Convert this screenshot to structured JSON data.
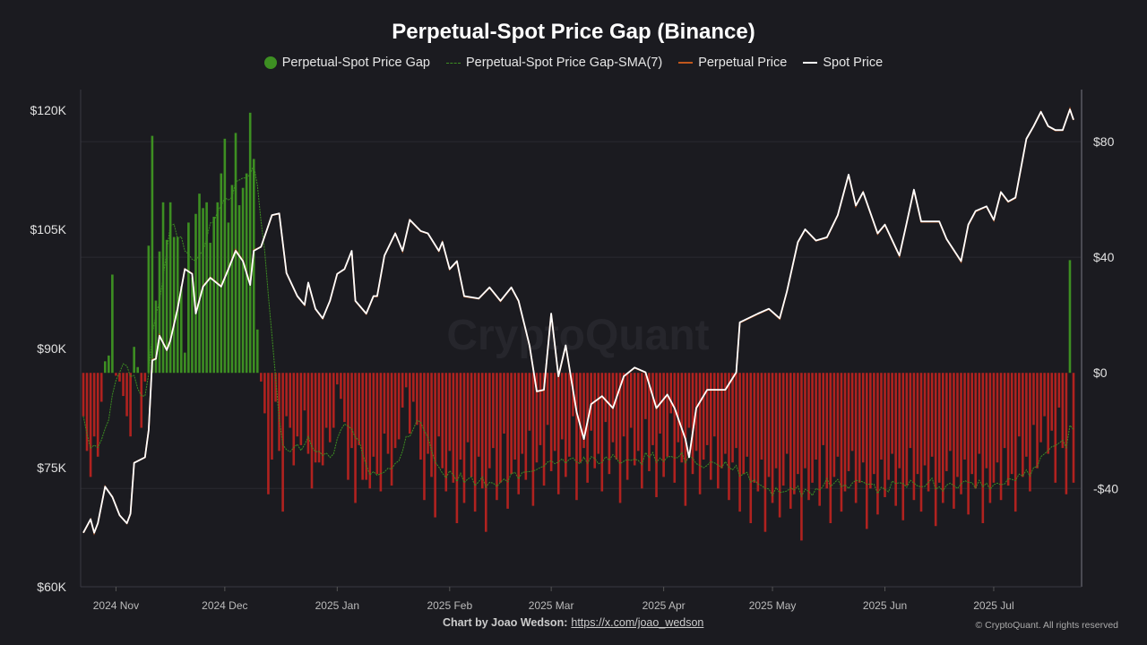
{
  "chart_data": {
    "type": "bar+line",
    "title": "Perpetual-Spot Price Gap (Binance)",
    "legend": [
      {
        "name": "Perpetual-Spot Price Gap",
        "marker": "dot",
        "color": "#3d8f22"
      },
      {
        "name": "Perpetual-Spot Price Gap-SMA(7)",
        "marker": "dashed-line",
        "color": "#3d8f22"
      },
      {
        "name": "Perpetual Price",
        "marker": "line",
        "color": "#c0571c"
      },
      {
        "name": "Spot Price",
        "marker": "line",
        "color": "#ffffff"
      }
    ],
    "legend_position": "top",
    "colors": {
      "positive_bar": "#3d8f22",
      "negative_bar": "#b0221f",
      "sma": "#3d8f22",
      "perpetual": "#c0571c",
      "spot": "#ffffff",
      "background": "#1b1b20"
    },
    "x_range": [
      "2024-10-23",
      "2025-07-23"
    ],
    "x_ticks": [
      {
        "label": "2024 Nov",
        "date": "2024-11-01"
      },
      {
        "label": "2024 Dec",
        "date": "2024-12-01"
      },
      {
        "label": "2025 Jan",
        "date": "2025-01-01"
      },
      {
        "label": "2025 Feb",
        "date": "2025-02-01"
      },
      {
        "label": "2025 Mar",
        "date": "2025-03-01"
      },
      {
        "label": "2025 Apr",
        "date": "2025-04-01"
      },
      {
        "label": "2025 May",
        "date": "2025-05-01"
      },
      {
        "label": "2025 Jun",
        "date": "2025-06-01"
      },
      {
        "label": "2025 Jul",
        "date": "2025-07-01"
      }
    ],
    "left_axis": {
      "unit": "USD",
      "ylim": [
        60000,
        122600
      ],
      "ticks": [
        {
          "value": 120000,
          "label": "$120K"
        },
        {
          "value": 105000,
          "label": "$105K"
        },
        {
          "value": 90000,
          "label": "$90K"
        },
        {
          "value": 75000,
          "label": "$75K"
        },
        {
          "value": 60000,
          "label": "$60K"
        }
      ]
    },
    "right_axis": {
      "unit": "USD",
      "ylim": [
        -74,
        98
      ],
      "ticks": [
        {
          "value": 80,
          "label": "$80"
        },
        {
          "value": 40,
          "label": "$40"
        },
        {
          "value": 0,
          "label": "$0"
        },
        {
          "value": -40,
          "label": "-$40"
        }
      ]
    },
    "grid": true,
    "gap_daily": {
      "start": "2024-10-23",
      "values": [
        -15,
        -27,
        -36,
        -22,
        -29,
        -10,
        4,
        6,
        34,
        -1,
        -3,
        -8,
        -15,
        -22,
        9,
        2,
        -19,
        -3,
        44,
        82,
        25,
        42,
        59,
        46,
        59,
        47,
        47,
        30,
        7,
        52,
        33,
        55,
        62,
        57,
        59,
        45,
        54,
        59,
        69,
        81,
        52,
        65,
        83,
        58,
        64,
        69,
        90,
        74,
        15,
        -3,
        -14,
        -42,
        -30,
        -10,
        -27,
        -48,
        -15,
        -19,
        -32,
        -22,
        -25,
        -13,
        -28,
        -40,
        -31,
        -31,
        -32,
        -19,
        -24,
        -19,
        -4,
        -9,
        -17,
        -37,
        -26,
        -45,
        -25,
        -37,
        -37,
        -40,
        -29,
        -35,
        -41,
        -21,
        -28,
        -39,
        -26,
        -23,
        -12,
        -5,
        -21,
        -10,
        -18,
        -30,
        -44,
        -28,
        -36,
        -50,
        -22,
        -33,
        -41,
        -27,
        -38,
        -52,
        -30,
        -45,
        -24,
        -36,
        -48,
        -29,
        -40,
        -55,
        -33,
        -26,
        -44,
        -38,
        -21,
        -47,
        -35,
        -30,
        -42,
        -28,
        -37,
        -20,
        -46,
        -31,
        -25,
        -39,
        -18,
        -34,
        -27,
        -42,
        -23,
        -36,
        -29,
        -15,
        -44,
        -31,
        -26,
        -38,
        -20,
        -33,
        -28,
        -41,
        -17,
        -35,
        -24,
        -30,
        -45,
        -22,
        -37,
        -19,
        -32,
        -27,
        -40,
        -16,
        -34,
        -25,
        -43,
        -21,
        -36,
        -29,
        -14,
        -38,
        -24,
        -31,
        -46,
        -19,
        -35,
        -27,
        -42,
        -30,
        -25,
        -37,
        -22,
        -40,
        -33,
        -28,
        -44,
        -31,
        -26,
        -48,
        -35,
        -29,
        -52,
        -38,
        -41,
        -30,
        -55,
        -36,
        -45,
        -33,
        -50,
        -39,
        -28,
        -47,
        -42,
        -35,
        -58,
        -33,
        -44,
        -38,
        -30,
        -46,
        -25,
        -40,
        -52,
        -36,
        -29,
        -48,
        -41,
        -34,
        -27,
        -45,
        -38,
        -31,
        -54,
        -40,
        -35,
        -49,
        -30,
        -43,
        -37,
        -28,
        -46,
        -33,
        -51,
        -39,
        -26,
        -44,
        -35,
        -48,
        -32,
        -41,
        -29,
        -53,
        -38,
        -45,
        -34,
        -27,
        -47,
        -36,
        -42,
        -30,
        -49,
        -35,
        -40,
        -28,
        -52,
        -33,
        -45,
        -38,
        -31,
        -44,
        -26,
        -39,
        -35,
        -48,
        -22,
        -36,
        -29,
        -41,
        -18,
        -33,
        -24,
        -15,
        -28,
        -20,
        -38,
        -12,
        -26,
        -42,
        39,
        -38
      ]
    },
    "spot_price": [
      [
        "2024-10-23",
        66800
      ],
      [
        "2024-10-25",
        68500
      ],
      [
        "2024-10-26",
        66800
      ],
      [
        "2024-10-27",
        68000
      ],
      [
        "2024-10-29",
        72600
      ],
      [
        "2024-10-31",
        71300
      ],
      [
        "2024-11-02",
        69000
      ],
      [
        "2024-11-04",
        68000
      ],
      [
        "2024-11-05",
        69200
      ],
      [
        "2024-11-06",
        75600
      ],
      [
        "2024-11-09",
        76300
      ],
      [
        "2024-11-10",
        79700
      ],
      [
        "2024-11-11",
        88500
      ],
      [
        "2024-11-12",
        88700
      ],
      [
        "2024-11-13",
        91600
      ],
      [
        "2024-11-15",
        89800
      ],
      [
        "2024-11-16",
        91000
      ],
      [
        "2024-11-18",
        95000
      ],
      [
        "2024-11-20",
        100000
      ],
      [
        "2024-11-22",
        99400
      ],
      [
        "2024-11-23",
        94400
      ],
      [
        "2024-11-25",
        97800
      ],
      [
        "2024-11-27",
        98900
      ],
      [
        "2024-11-30",
        97800
      ],
      [
        "2024-12-02",
        100000
      ],
      [
        "2024-12-04",
        102300
      ],
      [
        "2024-12-06",
        101000
      ],
      [
        "2024-12-08",
        98000
      ],
      [
        "2024-12-09",
        102300
      ],
      [
        "2024-12-11",
        102800
      ],
      [
        "2024-12-14",
        106800
      ],
      [
        "2024-12-16",
        107000
      ],
      [
        "2024-12-18",
        99500
      ],
      [
        "2024-12-21",
        96600
      ],
      [
        "2024-12-23",
        95500
      ],
      [
        "2024-12-24",
        98300
      ],
      [
        "2024-12-26",
        95000
      ],
      [
        "2024-12-28",
        93800
      ],
      [
        "2024-12-30",
        96000
      ],
      [
        "2025-01-01",
        99400
      ],
      [
        "2025-01-03",
        100000
      ],
      [
        "2025-01-05",
        102300
      ],
      [
        "2025-01-06",
        96000
      ],
      [
        "2025-01-09",
        94400
      ],
      [
        "2025-01-11",
        96600
      ],
      [
        "2025-01-12",
        96600
      ],
      [
        "2025-01-14",
        101700
      ],
      [
        "2025-01-17",
        104500
      ],
      [
        "2025-01-19",
        102300
      ],
      [
        "2025-01-21",
        106200
      ],
      [
        "2025-01-24",
        104800
      ],
      [
        "2025-01-26",
        104500
      ],
      [
        "2025-01-29",
        102300
      ],
      [
        "2025-01-30",
        103400
      ],
      [
        "2025-02-01",
        100000
      ],
      [
        "2025-02-03",
        101000
      ],
      [
        "2025-02-05",
        96600
      ],
      [
        "2025-02-09",
        96300
      ],
      [
        "2025-02-12",
        97700
      ],
      [
        "2025-02-15",
        96000
      ],
      [
        "2025-02-18",
        97700
      ],
      [
        "2025-02-20",
        96000
      ],
      [
        "2025-02-23",
        90400
      ],
      [
        "2025-02-25",
        84600
      ],
      [
        "2025-02-27",
        84800
      ],
      [
        "2025-03-01",
        94400
      ],
      [
        "2025-03-03",
        86500
      ],
      [
        "2025-03-05",
        90400
      ],
      [
        "2025-03-08",
        82000
      ],
      [
        "2025-03-10",
        78600
      ],
      [
        "2025-03-12",
        83000
      ],
      [
        "2025-03-15",
        84000
      ],
      [
        "2025-03-18",
        82500
      ],
      [
        "2025-03-21",
        86500
      ],
      [
        "2025-03-24",
        87600
      ],
      [
        "2025-03-27",
        87000
      ],
      [
        "2025-03-30",
        82500
      ],
      [
        "2025-04-02",
        84200
      ],
      [
        "2025-04-04",
        82500
      ],
      [
        "2025-04-07",
        78600
      ],
      [
        "2025-04-08",
        76300
      ],
      [
        "2025-04-10",
        82500
      ],
      [
        "2025-04-13",
        84800
      ],
      [
        "2025-04-18",
        84800
      ],
      [
        "2025-04-21",
        87000
      ],
      [
        "2025-04-22",
        93300
      ],
      [
        "2025-04-27",
        94400
      ],
      [
        "2025-04-30",
        95000
      ],
      [
        "2025-05-03",
        93800
      ],
      [
        "2025-05-05",
        97200
      ],
      [
        "2025-05-08",
        103400
      ],
      [
        "2025-05-10",
        105000
      ],
      [
        "2025-05-13",
        103600
      ],
      [
        "2025-05-16",
        104000
      ],
      [
        "2025-05-19",
        106800
      ],
      [
        "2025-05-22",
        111900
      ],
      [
        "2025-05-24",
        108000
      ],
      [
        "2025-05-26",
        109700
      ],
      [
        "2025-05-30",
        104500
      ],
      [
        "2025-06-01",
        105600
      ],
      [
        "2025-06-05",
        101700
      ],
      [
        "2025-06-07",
        105800
      ],
      [
        "2025-06-09",
        110000
      ],
      [
        "2025-06-11",
        106000
      ],
      [
        "2025-06-16",
        106000
      ],
      [
        "2025-06-18",
        103800
      ],
      [
        "2025-06-22",
        101000
      ],
      [
        "2025-06-24",
        105600
      ],
      [
        "2025-06-26",
        107300
      ],
      [
        "2025-06-29",
        107900
      ],
      [
        "2025-07-01",
        106200
      ],
      [
        "2025-07-03",
        109700
      ],
      [
        "2025-07-05",
        108500
      ],
      [
        "2025-07-07",
        109000
      ],
      [
        "2025-07-10",
        116400
      ],
      [
        "2025-07-12",
        118000
      ],
      [
        "2025-07-14",
        119800
      ],
      [
        "2025-07-16",
        118000
      ],
      [
        "2025-07-18",
        117500
      ],
      [
        "2025-07-20",
        117500
      ],
      [
        "2025-07-22",
        120100
      ],
      [
        "2025-07-23",
        118800
      ]
    ],
    "watermark": "CryptoQuant"
  },
  "footer": {
    "credit_label": "Chart by Joao Wedson:",
    "credit_link": "https://x.com/joao_wedson",
    "copyright": "© CryptoQuant. All rights reserved"
  }
}
